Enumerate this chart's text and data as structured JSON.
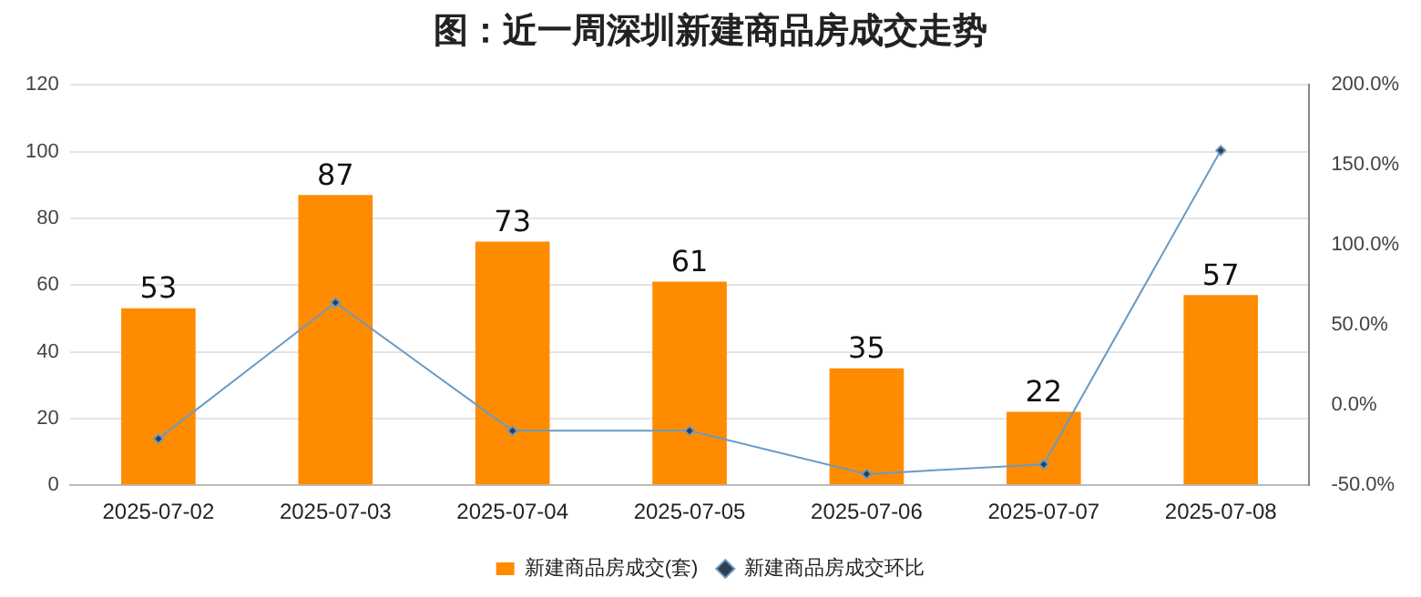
{
  "chart_data": {
    "type": "bar",
    "title": "图：近一周深圳新建商品房成交走势",
    "categories": [
      "2025-07-02",
      "2025-07-03",
      "2025-07-04",
      "2025-07-05",
      "2025-07-06",
      "2025-07-07",
      "2025-07-08"
    ],
    "series": [
      {
        "name": "新建商品房成交(套)",
        "color": "#ff8c00",
        "values": [
          53,
          87,
          73,
          61,
          35,
          22,
          57
        ],
        "value_labels": [
          "53",
          "87",
          "73",
          "61",
          "35",
          "22",
          "57"
        ]
      },
      {
        "name": "新建商品房成交环比",
        "type": "line",
        "axis": "y2",
        "color": "#6a9ac4",
        "marker": "diamond",
        "values": [
          -21,
          64,
          -16,
          -16,
          -43,
          -37,
          159
        ]
      }
    ],
    "ylim": [
      0,
      120
    ],
    "yticks": [
      0,
      20,
      40,
      60,
      80,
      100,
      120
    ],
    "y2lim": [
      -50,
      200
    ],
    "y2ticks": [
      {
        "value": -50,
        "label": "-50.0%"
      },
      {
        "value": 0,
        "label": "0.0%"
      },
      {
        "value": 50,
        "label": "50.0%"
      },
      {
        "value": 100,
        "label": "100.0%"
      },
      {
        "value": 150,
        "label": "150.0%"
      },
      {
        "value": 200,
        "label": "200.0%"
      }
    ],
    "grid": "y",
    "legend": "bottom"
  }
}
